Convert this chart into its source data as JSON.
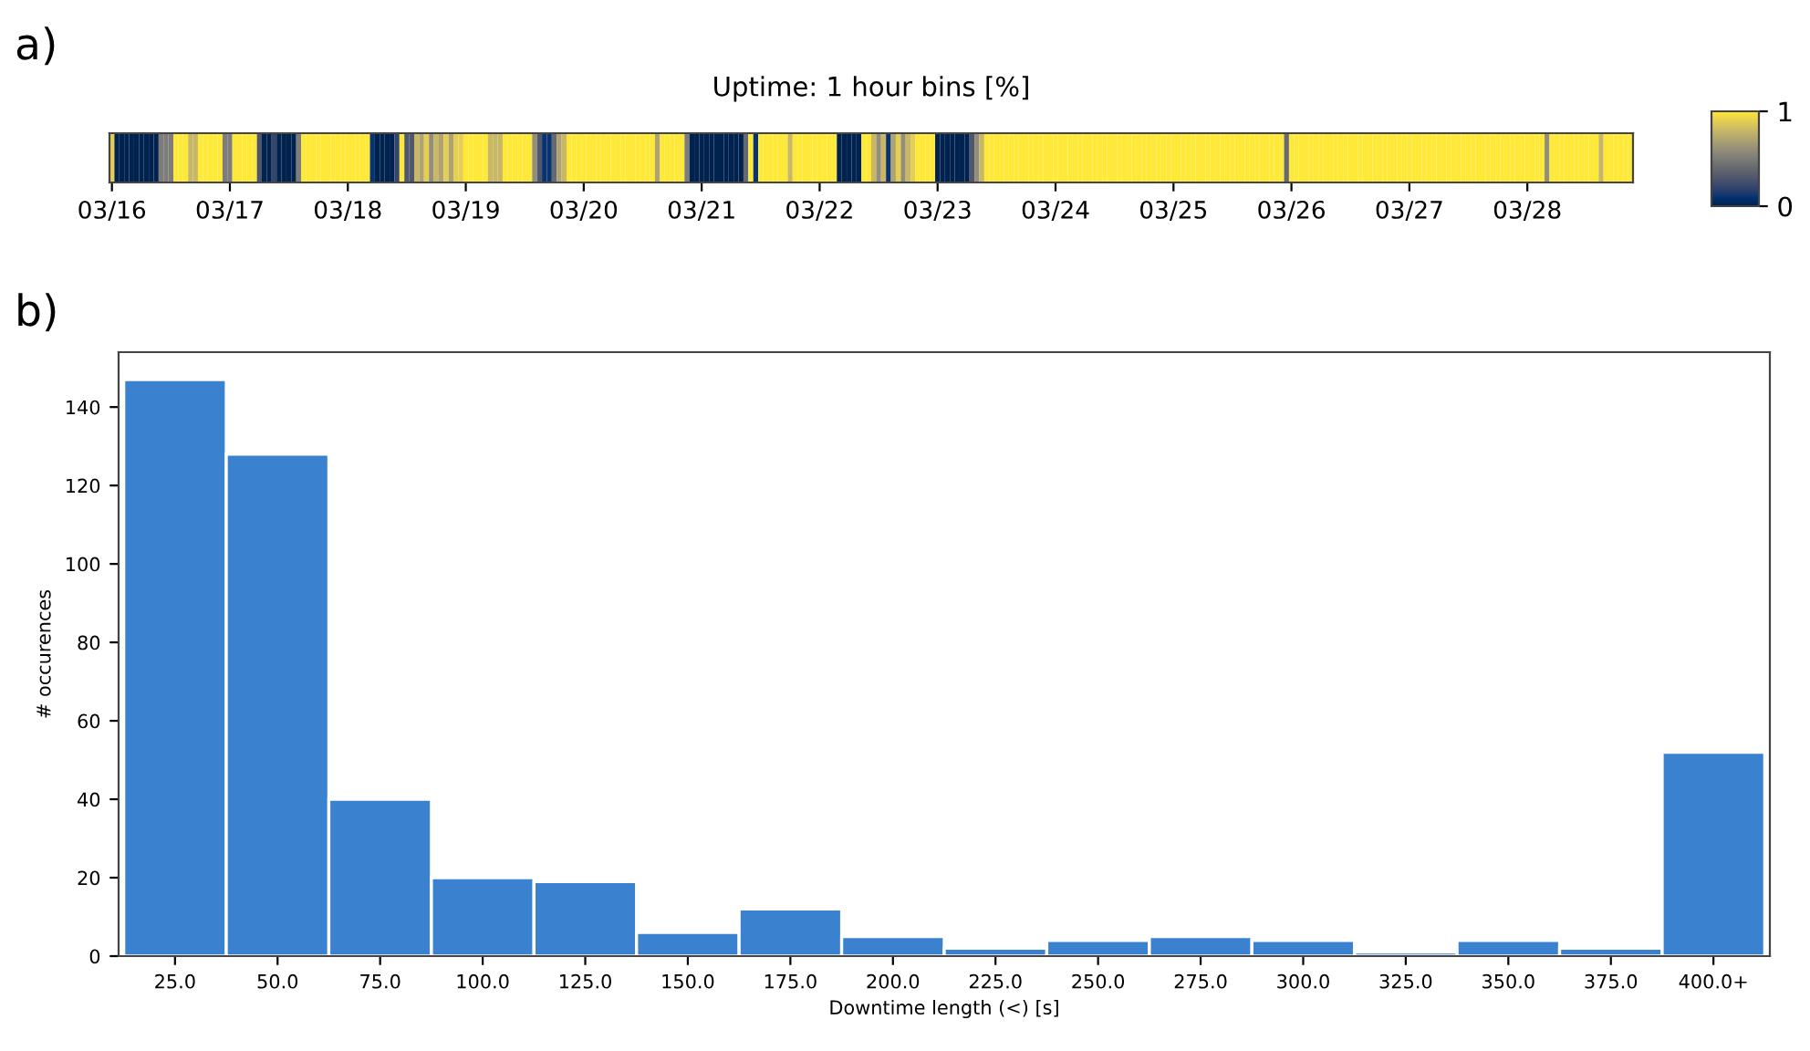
{
  "chart_data": [
    {
      "type": "heatmap",
      "title": "Uptime: 1 hour bins [%]",
      "annotations": [
        "a)"
      ],
      "categories": [
        "03/16",
        null,
        null,
        null,
        null,
        null,
        null,
        null,
        null,
        null,
        null,
        null,
        null,
        null,
        null,
        null,
        null,
        null,
        null,
        null,
        null,
        null,
        null,
        null,
        "03/17",
        null,
        null,
        null,
        null,
        null,
        null,
        null,
        null,
        null,
        null,
        null,
        null,
        null,
        null,
        null,
        null,
        null,
        null,
        null,
        null,
        null,
        null,
        null,
        "03/18",
        null,
        null,
        null,
        null,
        null,
        null,
        null,
        null,
        null,
        null,
        null,
        null,
        null,
        null,
        null,
        null,
        null,
        null,
        null,
        null,
        null,
        null,
        null,
        "03/19",
        null,
        null,
        null,
        null,
        null,
        null,
        null,
        null,
        null,
        null,
        null,
        null,
        null,
        null,
        null,
        null,
        null,
        null,
        null,
        null,
        null,
        null,
        null,
        "03/20",
        null,
        null,
        null,
        null,
        null,
        null,
        null,
        null,
        null,
        null,
        null,
        null,
        null,
        null,
        null,
        null,
        null,
        null,
        null,
        null,
        null,
        null,
        null,
        "03/21",
        null,
        null,
        null,
        null,
        null,
        null,
        null,
        null,
        null,
        null,
        null,
        null,
        null,
        null,
        null,
        null,
        null,
        null,
        null,
        null,
        null,
        null,
        null,
        "03/22",
        null,
        null,
        null,
        null,
        null,
        null,
        null,
        null,
        null,
        null,
        null,
        null,
        null,
        null,
        null,
        null,
        null,
        null,
        null,
        null,
        null,
        null,
        null,
        "03/23",
        null,
        null,
        null,
        null,
        null,
        null,
        null,
        null,
        null,
        null,
        null,
        null,
        null,
        null,
        null,
        null,
        null,
        null,
        null,
        null,
        null,
        null,
        null,
        "03/24",
        null,
        null,
        null,
        null,
        null,
        null,
        null,
        null,
        null,
        null,
        null,
        null,
        null,
        null,
        null,
        null,
        null,
        null,
        null,
        null,
        null,
        null,
        null,
        "03/25",
        null,
        null,
        null,
        null,
        null,
        null,
        null,
        null,
        null,
        null,
        null,
        null,
        null,
        null,
        null,
        null,
        null,
        null,
        null,
        null,
        null,
        null,
        null,
        "03/26",
        null,
        null,
        null,
        null,
        null,
        null,
        null,
        null,
        null,
        null,
        null,
        null,
        null,
        null,
        null,
        null,
        null,
        null,
        null,
        null,
        null,
        null,
        null,
        "03/27",
        null,
        null,
        null,
        null,
        null,
        null,
        null,
        null,
        null,
        null,
        null,
        null,
        null,
        null,
        null,
        null,
        null,
        null,
        null,
        null,
        null,
        null,
        null,
        "03/28",
        null,
        null,
        null,
        null,
        null,
        null,
        null,
        null,
        null,
        null,
        null,
        null,
        null,
        null,
        null,
        null,
        null,
        null,
        null,
        null,
        null
      ],
      "y_categories": [
        null
      ],
      "cells": [
        [
          0.9,
          0,
          0,
          0,
          0,
          0,
          0,
          0,
          0,
          0,
          0.5,
          0.5,
          0.5,
          1,
          1,
          1,
          0.8,
          0.8,
          1,
          1,
          1,
          1,
          1,
          0.5,
          0.5,
          1,
          1,
          1,
          1,
          1,
          0.3,
          0,
          0,
          0.2,
          0,
          0,
          0,
          0,
          0.5,
          1,
          1,
          1,
          1,
          1,
          1,
          1,
          1,
          1,
          1,
          1,
          1,
          1,
          1,
          0.1,
          0,
          0,
          0,
          0,
          0.2,
          1,
          0.3,
          0.3,
          0.8,
          0.7,
          0.9,
          0.6,
          0.8,
          0.7,
          0.9,
          0.7,
          0.9,
          0.9,
          1,
          1,
          1,
          1,
          1,
          0.8,
          0.8,
          0.8,
          1,
          1,
          1,
          1,
          1,
          1,
          0.6,
          0.3,
          0.1,
          0.1,
          0.4,
          0.7,
          0.8,
          1,
          1,
          1,
          1,
          1,
          1,
          1,
          1,
          1,
          1,
          1,
          1,
          1,
          1,
          1,
          1,
          1,
          1,
          0.7,
          1,
          1,
          1,
          1,
          1,
          0.5,
          0,
          0,
          0,
          0,
          0,
          0,
          0,
          0,
          0,
          0,
          0,
          0.4,
          1,
          0.1,
          1,
          1,
          1,
          1,
          1,
          1,
          0.8,
          1,
          1,
          1,
          1,
          1,
          1,
          1,
          1,
          1,
          0,
          0,
          0,
          0,
          0,
          1,
          1,
          0.8,
          0.6,
          0.8,
          0.1,
          0.7,
          0.9,
          0.6,
          0.8,
          0.9,
          1,
          1,
          1,
          1,
          0,
          0,
          0,
          0,
          0,
          0,
          0,
          0.3,
          0.6,
          0.8,
          1,
          1,
          1,
          1,
          1,
          1,
          1,
          1,
          1,
          1,
          1,
          1,
          1,
          1,
          1,
          1,
          1,
          1,
          1,
          1,
          1,
          1,
          1,
          1,
          1,
          1,
          1,
          1,
          1,
          1,
          1,
          1,
          1,
          1,
          1,
          1,
          1,
          1,
          1,
          1,
          1,
          1,
          1,
          1,
          1,
          1,
          1,
          1,
          1,
          1,
          1,
          1,
          1,
          1,
          1,
          1,
          1,
          1,
          1,
          1,
          1,
          0.4,
          1,
          1,
          1,
          1,
          1,
          1,
          1,
          1,
          1,
          1,
          1,
          1,
          1,
          1,
          1,
          1,
          1,
          1,
          1,
          1,
          1,
          1,
          1,
          1,
          1,
          1,
          1,
          1,
          1,
          1,
          1,
          1,
          1,
          1,
          1,
          1,
          1,
          1,
          1,
          1,
          1,
          1,
          1,
          1,
          1,
          1,
          1,
          1,
          1,
          1,
          1,
          1,
          0.6,
          1,
          1,
          1,
          1,
          1,
          1,
          1,
          1,
          1,
          1,
          0.8,
          1,
          1,
          1,
          1,
          1,
          1
        ]
      ],
      "clim": [
        0,
        1
      ],
      "cticks": [
        0,
        1
      ]
    },
    {
      "type": "bar",
      "annotations": [
        "b)"
      ],
      "categories": [
        "25.0",
        "50.0",
        "75.0",
        "100.0",
        "125.0",
        "150.0",
        "175.0",
        "200.0",
        "225.0",
        "250.0",
        "275.0",
        "300.0",
        "325.0",
        "350.0",
        "375.0",
        "400.0+"
      ],
      "values": [
        147,
        128,
        40,
        20,
        19,
        6,
        12,
        5,
        2,
        4,
        5,
        4,
        1,
        4,
        2,
        52
      ],
      "color": "#3a81cf",
      "xlabel": "Downtime length (<) [s]",
      "ylabel": "# occurences",
      "ylim": [
        0,
        154
      ],
      "yticks": [
        0,
        20,
        40,
        60,
        80,
        100,
        120,
        140
      ]
    }
  ]
}
